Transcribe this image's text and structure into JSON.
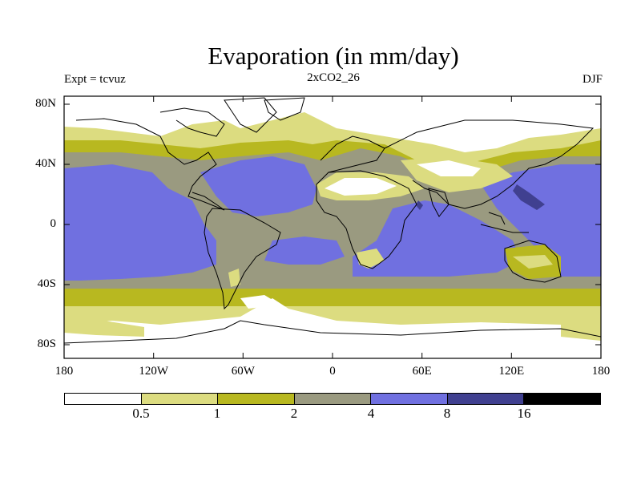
{
  "title": "Evaporation (in mm/day)",
  "left_label": "Expt = tcvuz",
  "center_label": "2xCO2_26",
  "right_label": "DJF",
  "y_ticks": [
    "80N",
    "40N",
    "0",
    "40S",
    "80S"
  ],
  "x_ticks": [
    "180",
    "120W",
    "60W",
    "0",
    "60E",
    "120E",
    "180"
  ],
  "colorbar": {
    "labels": [
      "0.5",
      "1",
      "2",
      "4",
      "8",
      "16"
    ],
    "colors": [
      "#ffffff",
      "#dcdc80",
      "#b8b820",
      "#9a9a80",
      "#7070e0",
      "#404090",
      "#000000"
    ]
  },
  "colors": {
    "ocean_high": "#7070e0",
    "ocean_mid": "#9a9a80",
    "low": "#b8b820",
    "lower": "#dcdc80",
    "lowest": "#ffffff",
    "max": "#404090"
  }
}
